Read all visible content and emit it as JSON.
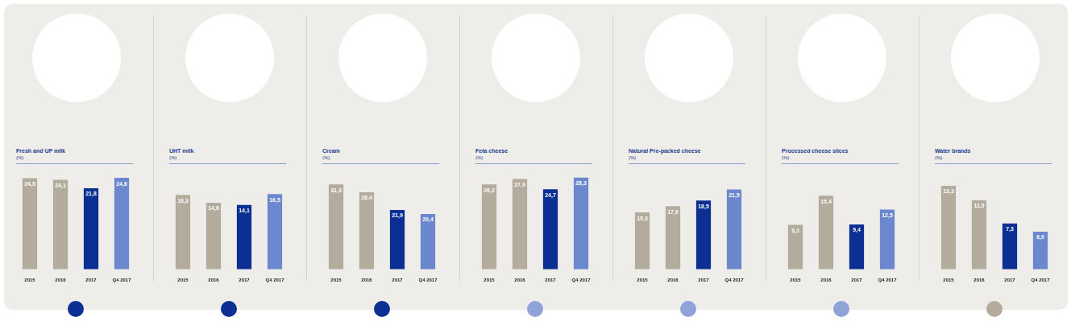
{
  "chart_data": [
    {
      "type": "bar",
      "title": "Fresh and UP milk",
      "subtitle": "(%)",
      "categories": [
        "2015",
        "2016",
        "2017",
        "Q4 2017"
      ],
      "values": [
        24.5,
        24.1,
        21.8,
        24.6
      ],
      "value_labels": [
        "24,5",
        "24,1",
        "21,8",
        "24,6"
      ],
      "colors": [
        "#b3ab9c",
        "#b3ab9c",
        "#0b2f93",
        "#6b88cf"
      ],
      "ylim": [
        0,
        27
      ],
      "grid": false,
      "data_labels": true,
      "tick_labels": "x"
    },
    {
      "type": "bar",
      "title": "UHT milk",
      "subtitle": "(%)",
      "categories": [
        "2015",
        "2016",
        "2017",
        "Q4 2017"
      ],
      "values": [
        16.3,
        14.6,
        14.1,
        16.5
      ],
      "value_labels": [
        "16,3",
        "14,6",
        "14,1",
        "16,5"
      ],
      "colors": [
        "#b3ab9c",
        "#b3ab9c",
        "#0b2f93",
        "#6b88cf"
      ],
      "ylim": [
        0,
        22
      ],
      "grid": false,
      "data_labels": true,
      "tick_labels": "x"
    },
    {
      "type": "bar",
      "title": "Cream",
      "subtitle": "(%)",
      "categories": [
        "2015",
        "2016",
        "2017",
        "Q4 2017"
      ],
      "values": [
        31.3,
        28.4,
        21.9,
        20.4
      ],
      "value_labels": [
        "31,3",
        "28,4",
        "21,9",
        "20,4"
      ],
      "colors": [
        "#b3ab9c",
        "#b3ab9c",
        "#0b2f93",
        "#6b88cf"
      ],
      "ylim": [
        0,
        37
      ],
      "grid": false,
      "data_labels": true,
      "tick_labels": "x"
    },
    {
      "type": "bar",
      "title": "Feta cheese",
      "subtitle": "(%)",
      "categories": [
        "2015",
        "2016",
        "2017",
        "Q4 2017"
      ],
      "values": [
        26.2,
        27.9,
        24.7,
        28.3
      ],
      "value_labels": [
        "26,2",
        "27,9",
        "24,7",
        "28,3"
      ],
      "colors": [
        "#b3ab9c",
        "#b3ab9c",
        "#0b2f93",
        "#6b88cf"
      ],
      "ylim": [
        0,
        31
      ],
      "grid": false,
      "data_labels": true,
      "tick_labels": "x"
    },
    {
      "type": "bar",
      "title": "Natural Pre-packed cheese",
      "subtitle": "(%)",
      "categories": [
        "2015",
        "2016",
        "2017",
        "Q4 2017"
      ],
      "values": [
        15.3,
        17.0,
        18.5,
        21.5
      ],
      "value_labels": [
        "15,3",
        "17,0",
        "18,5",
        "21,5"
      ],
      "colors": [
        "#b3ab9c",
        "#b3ab9c",
        "#0b2f93",
        "#6b88cf"
      ],
      "ylim": [
        0,
        27
      ],
      "grid": false,
      "data_labels": true,
      "tick_labels": "x"
    },
    {
      "type": "bar",
      "title": "Processed cheese slices",
      "subtitle": "(%)",
      "categories": [
        "2015",
        "2016",
        "2017",
        "Q4 2017"
      ],
      "values": [
        9.3,
        15.4,
        9.4,
        12.5
      ],
      "value_labels": [
        "9,3",
        "15,4",
        "9,4",
        "12,5"
      ],
      "colors": [
        "#b3ab9c",
        "#b3ab9c",
        "#0b2f93",
        "#6b88cf"
      ],
      "ylim": [
        0,
        21
      ],
      "grid": false,
      "data_labels": true,
      "tick_labels": "x"
    },
    {
      "type": "bar",
      "title": "Water brands",
      "subtitle": "(%)",
      "categories": [
        "2015",
        "2016",
        "2017",
        "Q4 2017"
      ],
      "values": [
        13.3,
        11.0,
        7.3,
        6.0
      ],
      "value_labels": [
        "13,3",
        "11,0",
        "7,3",
        "6,0"
      ],
      "colors": [
        "#b3ab9c",
        "#b3ab9c",
        "#0b2f93",
        "#6b88cf"
      ],
      "ylim": [
        0,
        16
      ],
      "grid": false,
      "data_labels": true,
      "tick_labels": "x"
    }
  ]
}
